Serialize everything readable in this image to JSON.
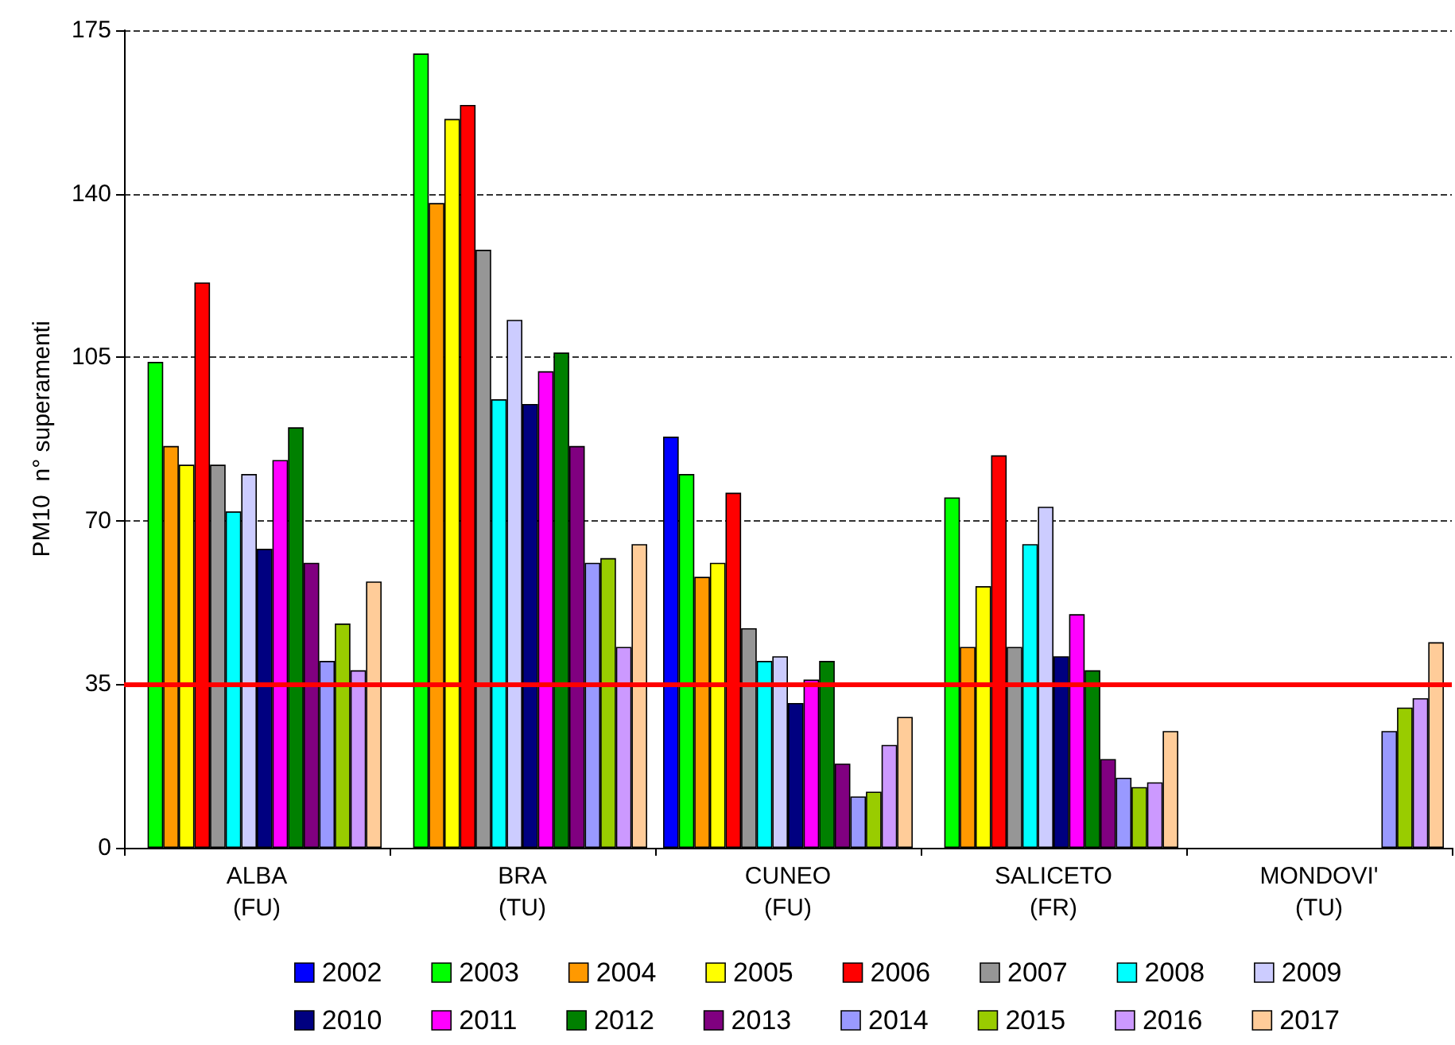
{
  "chart_data": {
    "type": "bar",
    "ylabel": "PM10  n° superamenti",
    "categories": [
      "ALBA\n(FU)",
      "BRA\n(TU)",
      "CUNEO\n(FU)",
      "SALICETO\n(FR)",
      "MONDOVI'\n(TU)"
    ],
    "series": [
      {
        "name": "2002",
        "color": "#0000ff",
        "values": [
          null,
          null,
          88,
          null,
          null
        ]
      },
      {
        "name": "2003",
        "color": "#00ff00",
        "values": [
          104,
          170,
          80,
          75,
          null
        ]
      },
      {
        "name": "2004",
        "color": "#ff9900",
        "values": [
          86,
          138,
          58,
          43,
          null
        ]
      },
      {
        "name": "2005",
        "color": "#ffff00",
        "values": [
          82,
          156,
          61,
          56,
          null
        ]
      },
      {
        "name": "2006",
        "color": "#ff0000",
        "values": [
          121,
          159,
          76,
          84,
          null
        ]
      },
      {
        "name": "2007",
        "color": "#969696",
        "values": [
          82,
          128,
          47,
          43,
          null
        ]
      },
      {
        "name": "2008",
        "color": "#00ffff",
        "values": [
          72,
          96,
          40,
          65,
          null
        ]
      },
      {
        "name": "2009",
        "color": "#ccccff",
        "values": [
          80,
          113,
          41,
          73,
          null
        ]
      },
      {
        "name": "2010",
        "color": "#000080",
        "values": [
          64,
          95,
          31,
          41,
          null
        ]
      },
      {
        "name": "2011",
        "color": "#ff00ff",
        "values": [
          83,
          102,
          36,
          50,
          null
        ]
      },
      {
        "name": "2012",
        "color": "#008000",
        "values": [
          90,
          106,
          40,
          38,
          null
        ]
      },
      {
        "name": "2013",
        "color": "#800080",
        "values": [
          61,
          86,
          18,
          19,
          null
        ]
      },
      {
        "name": "2014",
        "color": "#9999ff",
        "values": [
          40,
          61,
          11,
          15,
          25
        ]
      },
      {
        "name": "2015",
        "color": "#99cc00",
        "values": [
          48,
          62,
          12,
          13,
          30
        ]
      },
      {
        "name": "2016",
        "color": "#cc99ff",
        "values": [
          38,
          43,
          22,
          14,
          32
        ]
      },
      {
        "name": "2017",
        "color": "#ffcc99",
        "values": [
          57,
          65,
          28,
          25,
          44
        ]
      }
    ],
    "ylim": [
      0,
      175
    ],
    "yticks": [
      0,
      35,
      70,
      105,
      140,
      175
    ],
    "grid": "y",
    "legend": "bottom",
    "ref_lines": [
      {
        "axis": "y",
        "value": 35,
        "color": "#ff0000",
        "line_style": "solid"
      }
    ]
  }
}
